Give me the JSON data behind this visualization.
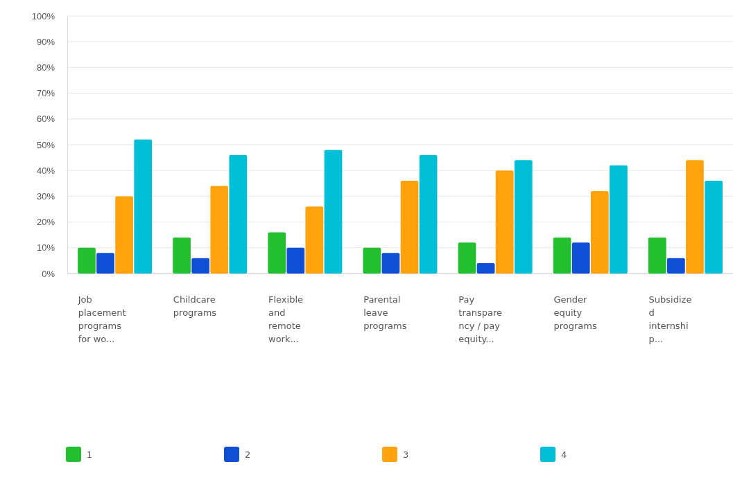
{
  "chart_data": {
    "type": "bar",
    "categories": [
      "Job placement programs for wo...",
      "Childcare programs",
      "Flexible and remote work...",
      "Parental leave programs",
      "Pay transparency / pay equity...",
      "Gender equity programs",
      "Subsidized internship..."
    ],
    "series": [
      {
        "name": "1",
        "color": "#22c02e",
        "values": [
          10,
          14,
          16,
          10,
          12,
          14,
          14
        ]
      },
      {
        "name": "2",
        "color": "#0f4fd6",
        "values": [
          8,
          6,
          10,
          8,
          4,
          12,
          6
        ]
      },
      {
        "name": "3",
        "color": "#ffa20c",
        "values": [
          30,
          34,
          26,
          36,
          40,
          32,
          44
        ]
      },
      {
        "name": "4",
        "color": "#00bfd6",
        "values": [
          52,
          46,
          48,
          46,
          44,
          42,
          36
        ]
      }
    ],
    "ylim": [
      0,
      100
    ],
    "yticks": [
      {
        "value": 0,
        "label": "0%"
      },
      {
        "value": 10,
        "label": "10%"
      },
      {
        "value": 20,
        "label": "20%"
      },
      {
        "value": 30,
        "label": "30%"
      },
      {
        "value": 40,
        "label": "40%"
      },
      {
        "value": 50,
        "label": "50%"
      },
      {
        "value": 60,
        "label": "60%"
      },
      {
        "value": 70,
        "label": "70%"
      },
      {
        "value": 80,
        "label": "80%"
      },
      {
        "value": 90,
        "label": "90%"
      },
      {
        "value": 100,
        "label": "100%"
      }
    ],
    "grid": "y",
    "legend": "bottom"
  }
}
